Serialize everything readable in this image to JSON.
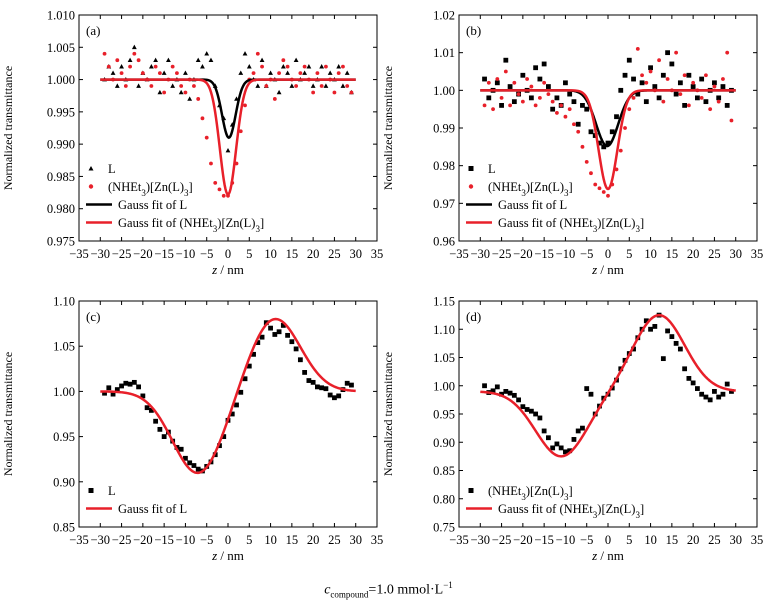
{
  "figure": {
    "caption": {
      "symbol": "c",
      "subscript": "compound",
      "value_text": "=1.0 mmol·L",
      "superscript": "−1"
    }
  },
  "chart_data": [
    {
      "panel_label": "(a)",
      "type": "scatter",
      "xlabel_var": "z",
      "xlabel_unit": " / nm",
      "ylabel": "Normalized transmittance",
      "xlim": [
        -35,
        35
      ],
      "ylim": [
        0.975,
        1.01
      ],
      "xticks": [
        -35,
        -30,
        -25,
        -20,
        -15,
        -10,
        -5,
        0,
        5,
        10,
        15,
        20,
        25,
        30,
        35
      ],
      "yticks": [
        0.975,
        0.98,
        0.985,
        0.99,
        0.995,
        1.0,
        1.005,
        1.01
      ],
      "ytick_format": "%.3f",
      "legend_position": "bottom-left",
      "series": [
        {
          "name": "L",
          "kind": "points",
          "marker": "triangle",
          "color": "#000000",
          "x": [
            -29,
            -28,
            -27,
            -26,
            -25,
            -24,
            -23,
            -22,
            -21,
            -20,
            -19,
            -18,
            -17,
            -16,
            -15,
            -14,
            -13,
            -12,
            -11,
            -10,
            -9,
            -8,
            -7,
            -6,
            -5,
            -4,
            -3,
            -2,
            -1,
            0,
            1,
            2,
            3,
            4,
            5,
            6,
            7,
            8,
            9,
            10,
            11,
            12,
            13,
            14,
            15,
            16,
            17,
            18,
            19,
            20,
            21,
            22,
            23,
            24,
            25,
            26,
            27,
            28,
            29
          ],
          "y": [
            1.0,
            1.002,
            1.001,
            0.999,
            1.002,
            1.0,
            1.003,
            1.005,
            0.999,
            1.001,
            1.0,
            1.002,
            1.003,
            0.998,
            1.001,
            1.003,
            0.999,
            1.0,
            0.998,
            1.001,
            0.997,
            1.0,
            1.003,
            1.002,
            1.004,
            1.003,
            0.999,
            0.996,
            0.994,
            0.989,
            0.993,
            0.997,
            1.001,
            1.004,
            1.002,
            1.0,
            0.999,
            1.003,
            0.999,
            1.001,
            1.0,
            0.998,
            1.002,
            1.001,
            0.999,
            1.003,
            1.0,
            1.001,
            1.002,
            0.999,
            1.0,
            1.002,
            0.999,
            1.001,
            1.0,
            1.002,
            0.999,
            1.001,
            0.998
          ]
        },
        {
          "name": "(NHEt3)[Zn(L)3]",
          "kind": "points",
          "marker": "circle",
          "color": "#e8202a",
          "x": [
            -29,
            -28,
            -27,
            -26,
            -25,
            -24,
            -23,
            -22,
            -21,
            -20,
            -19,
            -18,
            -17,
            -16,
            -15,
            -14,
            -13,
            -12,
            -11,
            -10,
            -9,
            -8,
            -7,
            -6,
            -5,
            -4,
            -3,
            -2,
            -1,
            0,
            1,
            2,
            3,
            4,
            5,
            6,
            7,
            8,
            9,
            10,
            11,
            12,
            13,
            14,
            15,
            16,
            17,
            18,
            19,
            20,
            21,
            22,
            23,
            24,
            25,
            26,
            27,
            28,
            29
          ],
          "y": [
            1.004,
            1.002,
            1.0,
            1.003,
            1.001,
            0.999,
            1.002,
            1.004,
            1.003,
            1.001,
            1.0,
            0.999,
            1.002,
            1.001,
            0.998,
            1.0,
            1.002,
            1.001,
            0.999,
            0.998,
            1.0,
            0.999,
            0.997,
            0.994,
            0.991,
            0.987,
            0.984,
            0.983,
            0.982,
            0.982,
            0.984,
            0.987,
            0.992,
            0.996,
            1.0,
            1.001,
            1.004,
            1.002,
            0.999,
            1.0,
            0.997,
            1.001,
            1.003,
            1.002,
            1.0,
            0.999,
            1.001,
            1.002,
            1.0,
            0.998,
            1.001,
            0.999,
            1.002,
            1.0,
            0.998,
            1.001,
            1.002,
            0.999,
            0.998
          ]
        },
        {
          "name": "Gauss fit of L",
          "kind": "gauss",
          "color": "#000000",
          "width": 2.5,
          "baseline": 1.0,
          "amplitude": -0.009,
          "center": 0.2,
          "sigma": 1.6
        },
        {
          "name": "Gauss fit of (NHEt3)[Zn(L)3]",
          "kind": "gauss",
          "color": "#e8202a",
          "width": 2.5,
          "baseline": 1.0,
          "amplitude": -0.0178,
          "center": 0.0,
          "sigma": 1.9
        }
      ]
    },
    {
      "panel_label": "(b)",
      "type": "scatter",
      "xlabel_var": "z",
      "xlabel_unit": " / nm",
      "ylabel": "Normalized transmittance",
      "xlim": [
        -35,
        35
      ],
      "ylim": [
        0.96,
        1.02
      ],
      "xticks": [
        -35,
        -30,
        -25,
        -20,
        -15,
        -10,
        -5,
        0,
        5,
        10,
        15,
        20,
        25,
        30,
        35
      ],
      "yticks": [
        0.96,
        0.97,
        0.98,
        0.99,
        1.0,
        1.01,
        1.02
      ],
      "ytick_format": "%.2f",
      "legend_position": "bottom-left",
      "series": [
        {
          "name": "L",
          "kind": "points",
          "marker": "square",
          "color": "#000000",
          "x": [
            -29,
            -28,
            -27,
            -26,
            -25,
            -24,
            -23,
            -22,
            -21,
            -20,
            -19,
            -18,
            -17,
            -16,
            -15,
            -14,
            -13,
            -12,
            -11,
            -10,
            -9,
            -8,
            -7,
            -6,
            -5,
            -4,
            -3,
            -2,
            -1,
            0,
            1,
            2,
            3,
            4,
            5,
            6,
            7,
            8,
            9,
            10,
            11,
            12,
            13,
            14,
            15,
            16,
            17,
            18,
            19,
            20,
            21,
            22,
            23,
            24,
            25,
            26,
            27,
            28,
            29
          ],
          "y": [
            1.003,
            0.998,
            1.0,
            1.002,
            0.996,
            1.008,
            1.001,
            0.997,
            0.999,
            1.004,
            1.0,
            0.998,
            1.006,
            1.003,
            1.007,
            1.001,
            0.995,
            0.998,
            0.996,
            1.002,
            0.999,
            0.997,
            0.991,
            0.996,
            0.995,
            0.989,
            0.988,
            0.986,
            0.985,
            0.986,
            0.989,
            0.993,
            1.0,
            1.004,
            1.008,
            1.003,
            0.999,
            1.002,
            0.997,
            1.006,
            1.001,
            0.998,
            1.004,
            1.01,
            1.007,
            0.999,
            1.002,
            0.996,
            1.004,
            1.001,
            0.998,
            1.003,
            0.997,
            1.0,
            1.002,
            0.998,
            1.001,
            0.996,
            1.0
          ]
        },
        {
          "name": "(NHEt3)[Zn(L)3]",
          "kind": "points",
          "marker": "circle",
          "color": "#e8202a",
          "x": [
            -29,
            -28,
            -27,
            -26,
            -25,
            -24,
            -23,
            -22,
            -21,
            -20,
            -19,
            -18,
            -17,
            -16,
            -15,
            -14,
            -13,
            -12,
            -11,
            -10,
            -9,
            -8,
            -7,
            -6,
            -5,
            -4,
            -3,
            -2,
            -1,
            0,
            1,
            2,
            3,
            4,
            5,
            6,
            7,
            8,
            9,
            10,
            11,
            12,
            13,
            14,
            15,
            16,
            17,
            18,
            19,
            20,
            21,
            22,
            23,
            24,
            25,
            26,
            27,
            28,
            29
          ],
          "y": [
            0.996,
            1.002,
            0.995,
            1.003,
            0.998,
            1.005,
            0.996,
            1.002,
            0.999,
            0.997,
            1.003,
            1.001,
            0.996,
            0.998,
            1.002,
            0.999,
            0.997,
            0.994,
            0.996,
            0.993,
            0.995,
            0.991,
            0.989,
            0.985,
            0.981,
            0.978,
            0.975,
            0.974,
            0.973,
            0.972,
            0.975,
            0.979,
            0.984,
            0.99,
            0.995,
            0.998,
            1.011,
            1.004,
            1.002,
            1.005,
            1.0,
            1.008,
            0.997,
            1.003,
            1.0,
            1.01,
            0.999,
            1.004,
            0.996,
            1.002,
            1.0,
            0.998,
            1.004,
            0.995,
            1.001,
            0.997,
            1.003,
            1.01,
            0.992
          ]
        },
        {
          "name": "Gauss fit of L",
          "kind": "gauss",
          "color": "#000000",
          "width": 2.5,
          "baseline": 1.0,
          "amplitude": -0.0148,
          "center": -0.2,
          "sigma": 2.6
        },
        {
          "name": "Gauss fit of (NHEt3)[Zn(L)3]",
          "kind": "gauss",
          "color": "#e8202a",
          "width": 2.5,
          "baseline": 1.0,
          "amplitude": -0.0262,
          "center": 0.0,
          "sigma": 2.2
        }
      ]
    },
    {
      "panel_label": "(c)",
      "type": "scatter",
      "xlabel_var": "z",
      "xlabel_unit": " / nm",
      "ylabel": "Normalized transmittance",
      "xlim": [
        -35,
        35
      ],
      "ylim": [
        0.85,
        1.1
      ],
      "xticks": [
        -35,
        -30,
        -25,
        -20,
        -15,
        -10,
        -5,
        0,
        5,
        10,
        15,
        20,
        25,
        30,
        35
      ],
      "yticks": [
        0.85,
        0.9,
        0.95,
        1.0,
        1.05,
        1.1
      ],
      "ytick_format": "%.2f",
      "legend_position": "bottom-left",
      "series": [
        {
          "name": "L",
          "kind": "points",
          "marker": "square",
          "color": "#000000",
          "x": [
            -29,
            -28,
            -27,
            -26,
            -25,
            -24,
            -23,
            -22,
            -21,
            -20,
            -19,
            -18,
            -17,
            -16,
            -15,
            -14,
            -13,
            -12,
            -11,
            -10,
            -9,
            -8,
            -7,
            -6,
            -5,
            -4,
            -3,
            -2,
            -1,
            0,
            1,
            2,
            3,
            4,
            5,
            6,
            7,
            8,
            9,
            10,
            11,
            12,
            13,
            14,
            15,
            16,
            17,
            18,
            19,
            20,
            21,
            22,
            23,
            24,
            25,
            26,
            27,
            28,
            29
          ],
          "y": [
            0.998,
            1.004,
            0.997,
            1.002,
            1.006,
            1.009,
            1.008,
            1.01,
            1.005,
            0.995,
            0.982,
            0.979,
            0.967,
            0.958,
            0.95,
            0.955,
            0.945,
            0.938,
            0.936,
            0.926,
            0.921,
            0.918,
            0.914,
            0.912,
            0.917,
            0.922,
            0.93,
            0.94,
            0.95,
            0.968,
            0.975,
            0.985,
            0.999,
            1.014,
            1.028,
            1.041,
            1.054,
            1.06,
            1.076,
            1.07,
            1.063,
            1.066,
            1.073,
            1.062,
            1.055,
            1.047,
            1.035,
            1.021,
            1.012,
            1.01,
            1.005,
            1.004,
            1.003,
            0.996,
            0.993,
            0.995,
            1.002,
            1.009,
            1.007
          ]
        },
        {
          "name": "Gauss fit of L",
          "kind": "dgauss",
          "color": "#e8202a",
          "width": 2.5,
          "baseline": 1.0,
          "amp1": -0.091,
          "c1": -7.0,
          "s1": 6.0,
          "amp2": 0.081,
          "c2": 11.0,
          "s2": 6.0
        }
      ]
    },
    {
      "panel_label": "(d)",
      "type": "scatter",
      "xlabel_var": "z",
      "xlabel_unit": " / nm",
      "ylabel": "Normalized transmittance",
      "xlim": [
        -35,
        35
      ],
      "ylim": [
        0.75,
        1.15
      ],
      "xticks": [
        -35,
        -30,
        -25,
        -20,
        -15,
        -10,
        -5,
        0,
        5,
        10,
        15,
        20,
        25,
        30,
        35
      ],
      "yticks": [
        0.75,
        0.8,
        0.85,
        0.9,
        0.95,
        1.0,
        1.05,
        1.1,
        1.15
      ],
      "ytick_format": "%.2f",
      "legend_position": "bottom-left",
      "series": [
        {
          "name": "(NHEt3)[Zn(L)3]",
          "kind": "points",
          "marker": "square",
          "color": "#000000",
          "x": [
            -29,
            -28,
            -27,
            -26,
            -25,
            -24,
            -23,
            -22,
            -21,
            -20,
            -19,
            -18,
            -17,
            -16,
            -15,
            -14,
            -13,
            -12,
            -11,
            -10,
            -9,
            -8,
            -7,
            -6,
            -5,
            -4,
            -3,
            -2,
            -1,
            0,
            1,
            2,
            3,
            4,
            5,
            6,
            7,
            8,
            9,
            10,
            11,
            12,
            13,
            14,
            15,
            16,
            17,
            18,
            19,
            20,
            21,
            22,
            23,
            24,
            25,
            26,
            27,
            28,
            29
          ],
          "y": [
            1.0,
            0.988,
            0.991,
            0.998,
            0.985,
            0.99,
            0.987,
            0.983,
            0.975,
            0.963,
            0.958,
            0.955,
            0.95,
            0.943,
            0.92,
            0.908,
            0.89,
            0.897,
            0.89,
            0.883,
            0.885,
            0.905,
            0.92,
            0.925,
            0.995,
            0.985,
            0.95,
            0.964,
            0.978,
            0.985,
            0.996,
            1.01,
            1.03,
            1.045,
            1.057,
            1.065,
            1.085,
            1.1,
            1.115,
            1.1,
            1.105,
            1.125,
            1.048,
            1.097,
            1.087,
            1.075,
            1.065,
            1.03,
            1.013,
            1.005,
            0.995,
            0.985,
            0.98,
            0.975,
            0.99,
            0.98,
            0.985,
            1.003,
            0.99
          ]
        },
        {
          "name": "Gauss fit of (NHEt3)[Zn(L)3]",
          "kind": "dgauss",
          "color": "#e8202a",
          "width": 2.5,
          "baseline": 0.99,
          "amp1": -0.115,
          "c1": -11.0,
          "s1": 6.0,
          "amp2": 0.135,
          "c2": 12.0,
          "s2": 6.0
        }
      ]
    }
  ]
}
